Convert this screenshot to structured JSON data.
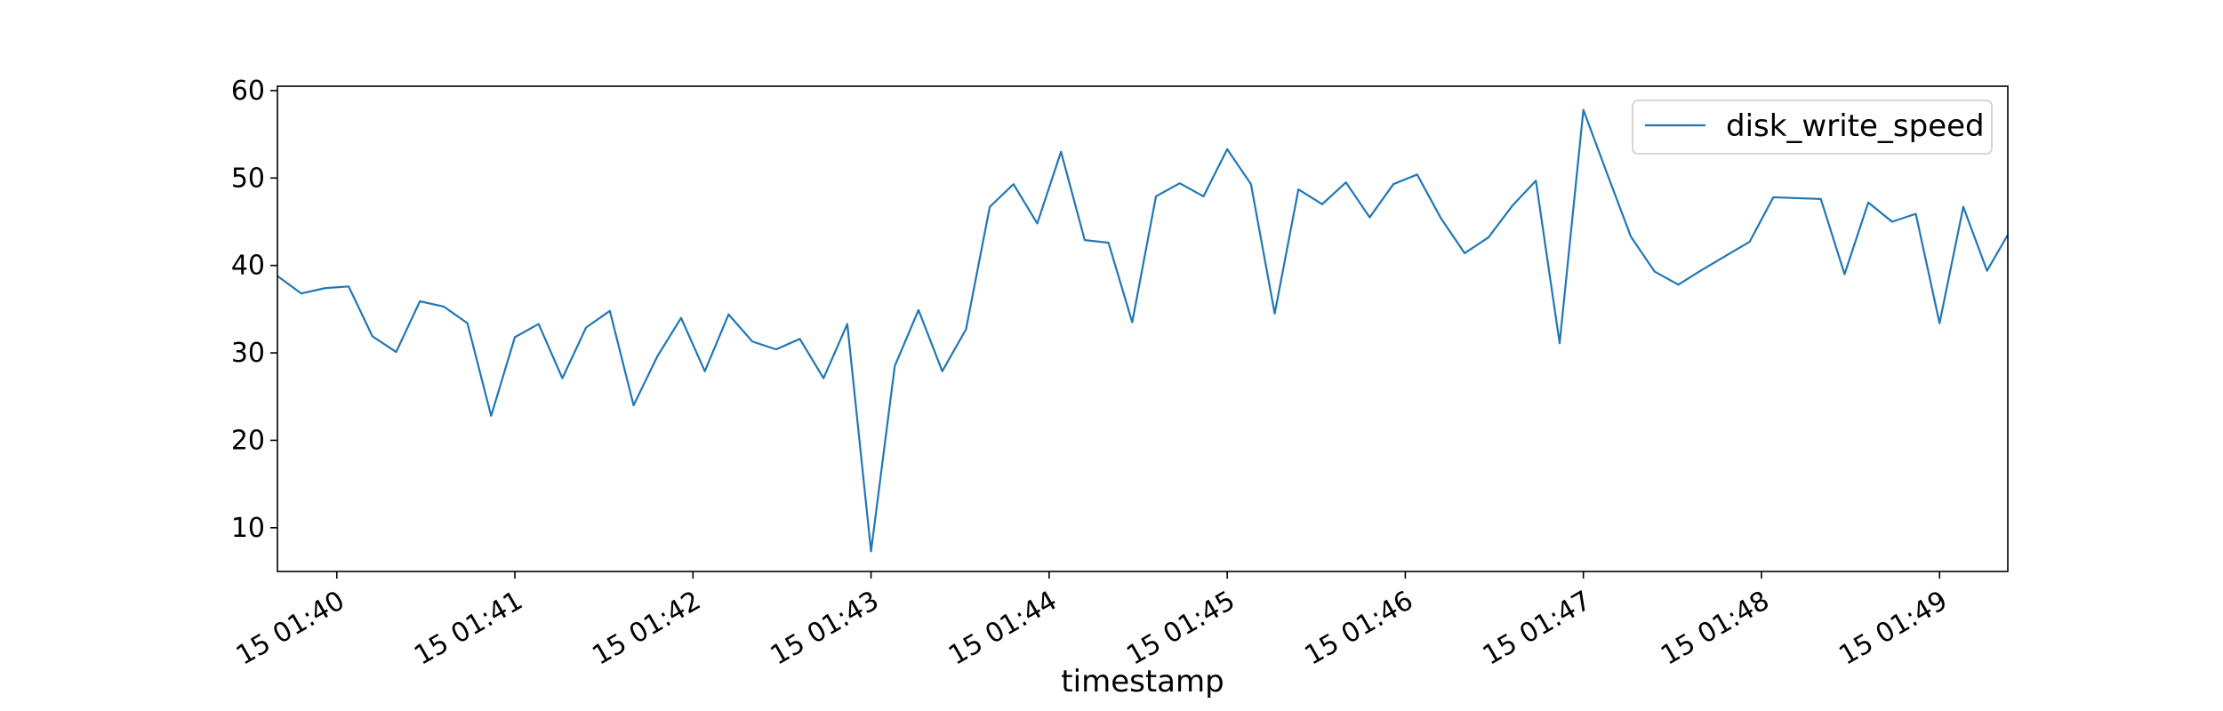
{
  "chart_data": {
    "type": "line",
    "title": "",
    "xlabel": "timestamp",
    "ylabel": "",
    "x_tick_labels": [
      "15 01:40",
      "15 01:41",
      "15 01:42",
      "15 01:43",
      "15 01:44",
      "15 01:45",
      "15 01:46",
      "15 01:47",
      "15 01:48",
      "15 01:49"
    ],
    "y_ticks": [
      10,
      20,
      30,
      40,
      50,
      60
    ],
    "xlim": [
      "01:39:40",
      "01:49:23"
    ],
    "ylim": [
      5,
      60.5
    ],
    "grid": false,
    "legend_position": "top-right",
    "series": [
      {
        "name": "disk_write_speed",
        "color": "#1f77b4",
        "x": [
          "01:39:40",
          "01:39:48",
          "01:39:56",
          "01:40:04",
          "01:40:12",
          "01:40:20",
          "01:40:28",
          "01:40:36",
          "01:40:44",
          "01:40:52",
          "01:41:00",
          "01:41:08",
          "01:41:16",
          "01:41:24",
          "01:41:32",
          "01:41:40",
          "01:41:48",
          "01:41:56",
          "01:42:04",
          "01:42:12",
          "01:42:20",
          "01:42:28",
          "01:42:36",
          "01:42:44",
          "01:42:52",
          "01:43:00",
          "01:43:08",
          "01:43:16",
          "01:43:24",
          "01:43:32",
          "01:43:40",
          "01:43:48",
          "01:43:56",
          "01:44:04",
          "01:44:12",
          "01:44:20",
          "01:44:28",
          "01:44:36",
          "01:44:44",
          "01:44:52",
          "01:45:00",
          "01:45:08",
          "01:45:16",
          "01:45:24",
          "01:45:32",
          "01:45:40",
          "01:45:48",
          "01:45:56",
          "01:46:04",
          "01:46:12",
          "01:46:20",
          "01:46:28",
          "01:46:36",
          "01:46:44",
          "01:46:52",
          "01:47:00",
          "01:47:08",
          "01:47:16",
          "01:47:24",
          "01:47:32",
          "01:47:40",
          "01:47:48",
          "01:47:56",
          "01:48:04",
          "01:48:12",
          "01:48:20",
          "01:48:28",
          "01:48:36",
          "01:48:44",
          "01:48:52",
          "01:49:00",
          "01:49:08",
          "01:49:16",
          "01:49:23"
        ],
        "values": [
          38.8,
          36.8,
          37.4,
          37.6,
          31.9,
          30.1,
          35.9,
          35.3,
          33.4,
          22.8,
          31.8,
          33.3,
          27.1,
          32.9,
          34.8,
          24.0,
          29.6,
          34.0,
          27.9,
          34.4,
          31.3,
          30.4,
          31.6,
          27.1,
          33.3,
          7.3,
          28.5,
          34.9,
          27.9,
          32.7,
          46.7,
          49.3,
          44.8,
          53.0,
          42.9,
          42.6,
          33.5,
          47.9,
          49.4,
          47.9,
          53.3,
          49.3,
          34.5,
          48.7,
          47.0,
          49.5,
          45.5,
          49.3,
          50.4,
          45.4,
          41.4,
          43.2,
          46.8,
          49.7,
          31.1,
          57.8,
          50.5,
          43.3,
          39.3,
          37.8,
          39.5,
          41.1,
          42.7,
          47.8,
          47.7,
          47.6,
          39.0,
          47.2,
          45.0,
          45.9,
          33.4,
          46.7,
          39.4,
          43.5
        ]
      }
    ]
  }
}
